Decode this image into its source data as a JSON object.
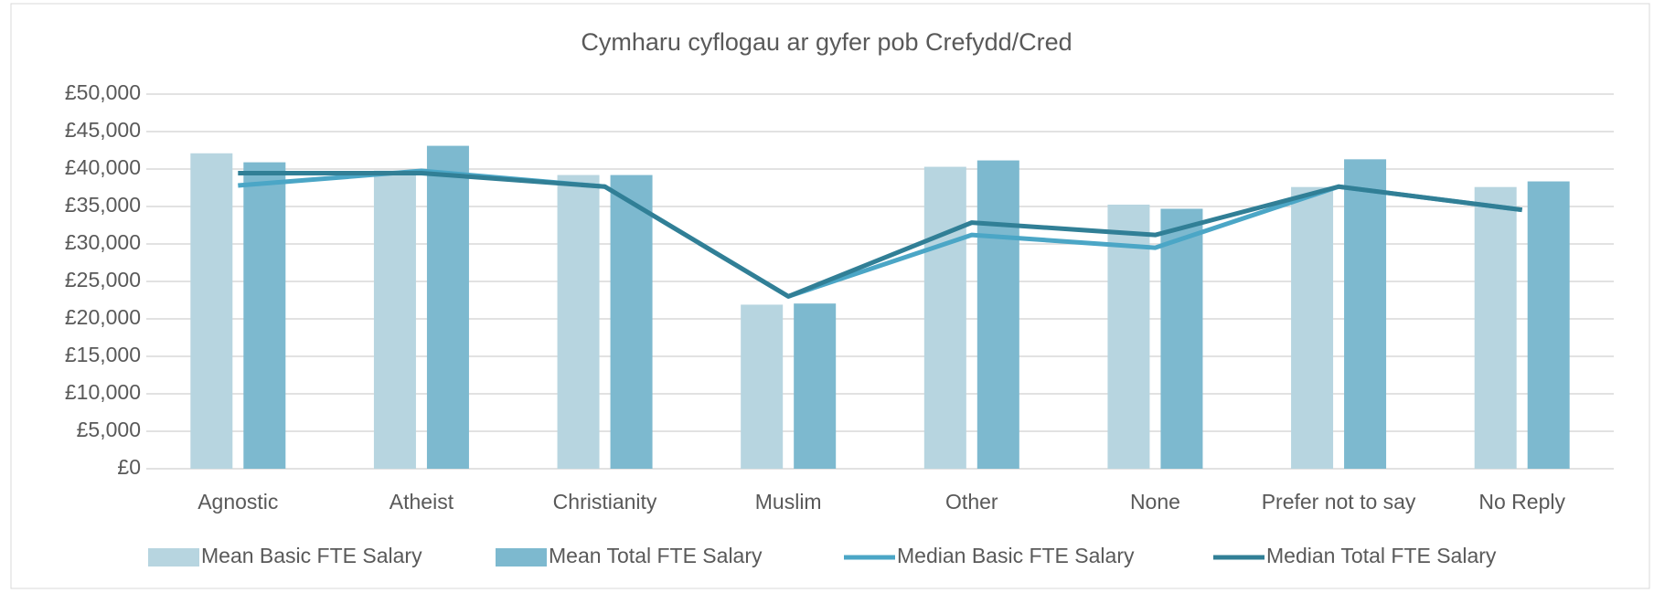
{
  "chart_data": {
    "type": "bar_line",
    "title": "Cymharu cyflogau ar gyfer pob Crefydd/Cred",
    "categories": [
      "Agnostic",
      "Atheist",
      "Christianity",
      "Muslim",
      "Other",
      "None",
      "Prefer not to say",
      "No Reply"
    ],
    "series": [
      {
        "name": "Mean Basic FTE Salary",
        "type": "bar",
        "color": "#b7d5e0",
        "values": [
          42100,
          39800,
          39200,
          21900,
          40300,
          35250,
          37600,
          37600
        ]
      },
      {
        "name": "Mean Total FTE Salary",
        "type": "bar",
        "color": "#7db9cf",
        "values": [
          40900,
          43100,
          39200,
          22050,
          41150,
          34700,
          41300,
          38350
        ]
      },
      {
        "name": "Median Basic FTE Salary",
        "type": "line",
        "color": "#4ba6c6",
        "values": [
          37800,
          39750,
          37650,
          23000,
          31200,
          29500,
          37650,
          34550
        ]
      },
      {
        "name": "Median Total FTE Salary",
        "type": "line",
        "color": "#317f96",
        "values": [
          39450,
          39450,
          37650,
          23000,
          32850,
          31200,
          37650,
          34550
        ]
      }
    ],
    "ylim": [
      0,
      50000
    ],
    "yticks": [
      {
        "value": 0,
        "label": "£0"
      },
      {
        "value": 5000,
        "label": "£5,000"
      },
      {
        "value": 10000,
        "label": "£10,000"
      },
      {
        "value": 15000,
        "label": "£15,000"
      },
      {
        "value": 20000,
        "label": "£20,000"
      },
      {
        "value": 25000,
        "label": "£25,000"
      },
      {
        "value": 30000,
        "label": "£30,000"
      },
      {
        "value": 35000,
        "label": "£35,000"
      },
      {
        "value": 40000,
        "label": "£40,000"
      },
      {
        "value": 45000,
        "label": "£45,000"
      },
      {
        "value": 50000,
        "label": "£50,000"
      }
    ],
    "grid": true,
    "legend": "bottom"
  }
}
